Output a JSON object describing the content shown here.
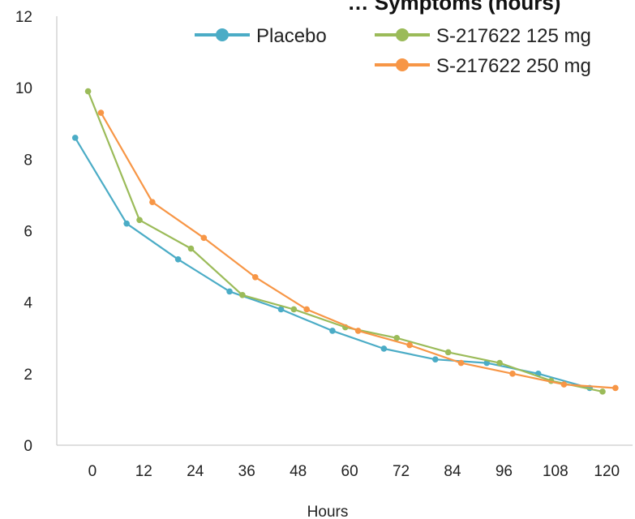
{
  "chart_data": {
    "type": "line",
    "title": "… Symptoms (hours)",
    "xlabel": "Hours",
    "ylabel": "",
    "ylim": [
      0,
      12
    ],
    "yticks": [
      0,
      2,
      4,
      6,
      8,
      10,
      12
    ],
    "xtick_labels": [
      "0",
      "12",
      "24",
      "36",
      "48",
      "60",
      "72",
      "84",
      "96",
      "108",
      "120"
    ],
    "legend_position": "top-right",
    "grid": false,
    "series": [
      {
        "name": "Placebo",
        "color": "#4BACC6",
        "x": [
          -4,
          8,
          20,
          32,
          44,
          56,
          68,
          80,
          92,
          104,
          116
        ],
        "y": [
          8.6,
          6.2,
          5.2,
          4.3,
          3.8,
          3.2,
          2.7,
          2.4,
          2.3,
          2.0,
          1.6
        ]
      },
      {
        "name": "S-217622 125 mg",
        "color": "#9BBB59",
        "x": [
          -1,
          11,
          23,
          35,
          47,
          59,
          71,
          83,
          95,
          107,
          119
        ],
        "y": [
          9.9,
          6.3,
          5.5,
          4.2,
          3.8,
          3.3,
          3.0,
          2.6,
          2.3,
          1.8,
          1.5
        ]
      },
      {
        "name": "S-217622 250 mg",
        "color": "#F79646",
        "x": [
          2,
          14,
          26,
          38,
          50,
          62,
          74,
          86,
          98,
          110,
          122
        ],
        "y": [
          9.3,
          6.8,
          5.8,
          4.7,
          3.8,
          3.2,
          2.8,
          2.3,
          2.0,
          1.7,
          1.6
        ]
      }
    ]
  }
}
